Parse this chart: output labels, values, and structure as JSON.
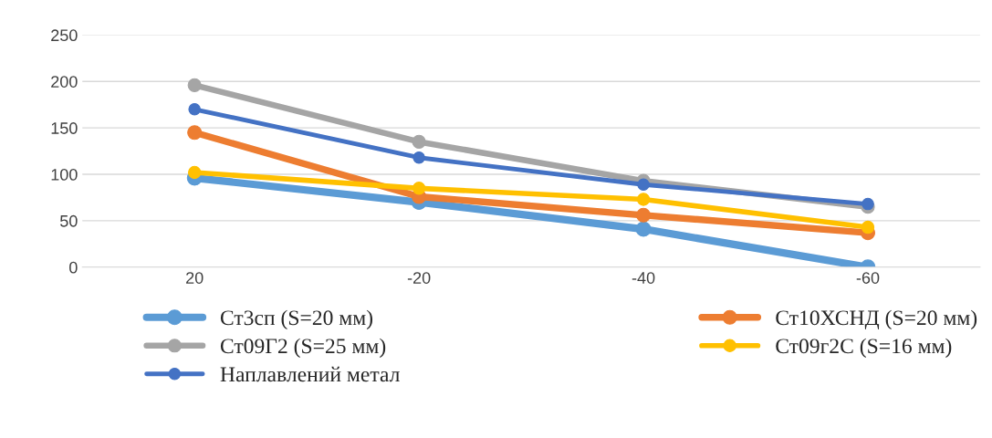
{
  "chart_data": {
    "type": "line",
    "categories": [
      "20",
      "-20",
      "-40",
      "-60"
    ],
    "series": [
      {
        "name": "Ст3сп (S=20 мм)",
        "color": "#5b9bd5",
        "values": [
          96,
          70,
          41,
          0
        ]
      },
      {
        "name": "Ст10ХСНД (S=20 мм)",
        "color": "#ed7d31",
        "values": [
          145,
          76,
          56,
          37
        ]
      },
      {
        "name": "Ст09Г2 (S=25 мм)",
        "color": "#a5a5a5",
        "values": [
          196,
          135,
          93,
          65
        ]
      },
      {
        "name": "Ст09г2С (S=16 мм)",
        "color": "#ffc000",
        "values": [
          102,
          85,
          73,
          43
        ]
      },
      {
        "name": "Наплавлений метал",
        "color": "#4472c4",
        "values": [
          170,
          118,
          89,
          68
        ]
      }
    ],
    "ylim": [
      0,
      250
    ],
    "yticks": [
      0,
      50,
      100,
      150,
      200,
      250
    ],
    "grid": "y",
    "legend": "bottom",
    "marker": "circle",
    "line_style": "solid"
  }
}
